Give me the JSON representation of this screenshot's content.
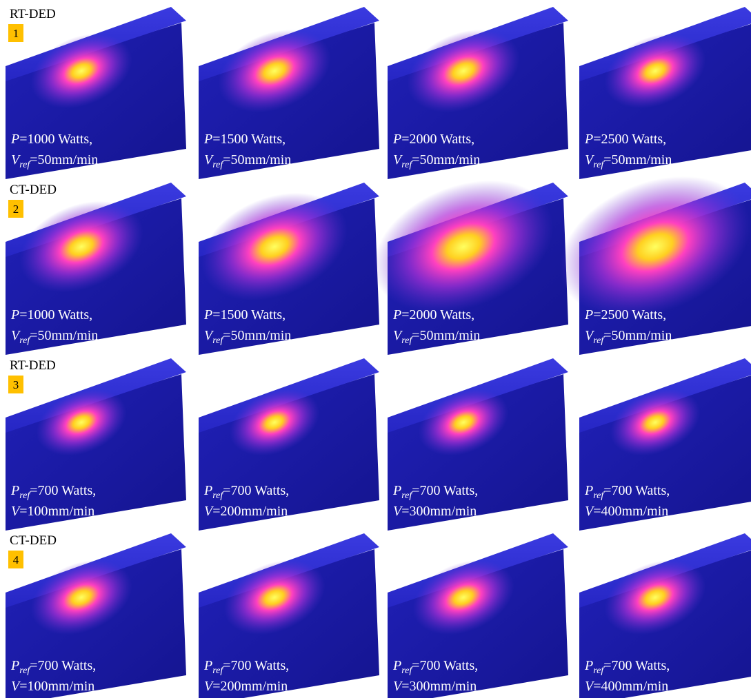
{
  "rows": [
    {
      "label": "RT-DED",
      "number": "1",
      "panels": [
        {
          "line1": {
            "var": "P",
            "text": "=1000 Watts,"
          },
          "line2": {
            "var": "V",
            "sub": "ref",
            "text": "=50mm/min"
          }
        },
        {
          "line1": {
            "var": "P",
            "text": "=1500 Watts,"
          },
          "line2": {
            "var": "V",
            "sub": "ref",
            "text": "=50mm/min"
          }
        },
        {
          "line1": {
            "var": "P",
            "text": "=2000 Watts,"
          },
          "line2": {
            "var": "V",
            "sub": "ref",
            "text": "=50mm/min"
          }
        },
        {
          "line1": {
            "var": "P",
            "text": "=2500 Watts,"
          },
          "line2": {
            "var": "V",
            "sub": "ref",
            "text": "=50mm/min"
          }
        }
      ]
    },
    {
      "label": "CT-DED",
      "number": "2",
      "panels": [
        {
          "line1": {
            "var": "P",
            "text": "=1000 Watts,"
          },
          "line2": {
            "var": "V",
            "sub": "ref",
            "text": "=50mm/min"
          }
        },
        {
          "line1": {
            "var": "P",
            "text": "=1500 Watts,"
          },
          "line2": {
            "var": "V",
            "sub": "ref",
            "text": "=50mm/min"
          }
        },
        {
          "line1": {
            "var": "P",
            "text": "=2000 Watts,"
          },
          "line2": {
            "var": "V",
            "sub": "ref",
            "text": "=50mm/min"
          }
        },
        {
          "line1": {
            "var": "P",
            "text": "=2500 Watts,"
          },
          "line2": {
            "var": "V",
            "sub": "ref",
            "text": "=50mm/min"
          }
        }
      ]
    },
    {
      "label": "RT-DED",
      "number": "3",
      "panels": [
        {
          "line1": {
            "var": "P",
            "sub": "ref",
            "text": "=700 Watts,"
          },
          "line2": {
            "var": "V",
            "text": "=100mm/min"
          }
        },
        {
          "line1": {
            "var": "P",
            "sub": "ref",
            "text": "=700 Watts,"
          },
          "line2": {
            "var": "V",
            "text": "=200mm/min"
          }
        },
        {
          "line1": {
            "var": "P",
            "sub": "ref",
            "text": "=700 Watts,"
          },
          "line2": {
            "var": "V",
            "text": "=300mm/min"
          }
        },
        {
          "line1": {
            "var": "P",
            "sub": "ref",
            "text": "=700 Watts,"
          },
          "line2": {
            "var": "V",
            "text": "=400mm/min"
          }
        }
      ]
    },
    {
      "label": "CT-DED",
      "number": "4",
      "panels": [
        {
          "line1": {
            "var": "P",
            "sub": "ref",
            "text": "=700 Watts,"
          },
          "line2": {
            "var": "V",
            "text": "=100mm/min"
          }
        },
        {
          "line1": {
            "var": "P",
            "sub": "ref",
            "text": "=700 Watts,"
          },
          "line2": {
            "var": "V",
            "text": "=200mm/min"
          }
        },
        {
          "line1": {
            "var": "P",
            "sub": "ref",
            "text": "=700 Watts,"
          },
          "line2": {
            "var": "V",
            "text": "=300mm/min"
          }
        },
        {
          "line1": {
            "var": "P",
            "sub": "ref",
            "text": "=700 Watts,"
          },
          "line2": {
            "var": "V",
            "text": "=400mm/min"
          }
        }
      ]
    }
  ]
}
